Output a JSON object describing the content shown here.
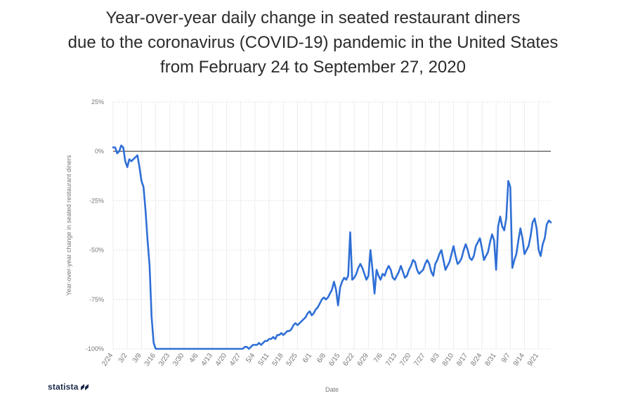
{
  "title_lines": [
    "Year-over-year daily change in seated restaurant diners",
    "due to the coronavirus (COVID-19) pandemic  in the United States",
    "from February 24 to September 27, 2020"
  ],
  "brand": "statista",
  "chart_data": {
    "type": "line",
    "title": "Year-over-year daily change in seated restaurant diners due to the coronavirus (COVID-19) pandemic in the United States from February 24 to September 27, 2020",
    "xlabel": "Date",
    "ylabel": "Year-over-year change in seated restaurant diners",
    "ylim": [
      -100,
      25
    ],
    "yticks": [
      25,
      0,
      -25,
      -50,
      -75,
      -100
    ],
    "ytick_labels": [
      "25%",
      "0%",
      "-25%",
      "-50%",
      "-75%",
      "-100%"
    ],
    "xtick_labels": [
      "2/24",
      "3/2",
      "3/9",
      "3/16",
      "3/23",
      "3/30",
      "4/6",
      "4/13",
      "4/20",
      "4/27",
      "5/4",
      "5/11",
      "5/18",
      "5/25",
      "6/1",
      "6/8",
      "6/15",
      "6/22",
      "6/29",
      "7/6",
      "7/13",
      "7/20",
      "7/27",
      "8/3",
      "8/10",
      "8/17",
      "8/24",
      "8/31",
      "9/7",
      "9/14",
      "9/21"
    ],
    "grid": true,
    "legend": "none",
    "line_color": "#2f6fd6",
    "zero_line_color": "#777777",
    "series": [
      {
        "values": [
          2,
          2,
          -1,
          0,
          3,
          2,
          -5,
          -8,
          -4,
          -5,
          -4,
          -3,
          -2,
          -8,
          -15,
          -18,
          -30,
          -45,
          -58,
          -84,
          -97,
          -100,
          -100,
          -100,
          -100,
          -100,
          -100,
          -100,
          -100,
          -100,
          -100,
          -100,
          -100,
          -100,
          -100,
          -100,
          -100,
          -100,
          -100,
          -100,
          -100,
          -100,
          -100,
          -100,
          -100,
          -100,
          -100,
          -100,
          -100,
          -100,
          -100,
          -100,
          -100,
          -100,
          -100,
          -100,
          -100,
          -100,
          -100,
          -100,
          -100,
          -100,
          -100,
          -100,
          -100,
          -99,
          -99,
          -100,
          -99,
          -98,
          -98,
          -98,
          -97,
          -98,
          -97,
          -96,
          -96,
          -95,
          -95,
          -94,
          -95,
          -93,
          -93,
          -92,
          -93,
          -92,
          -91,
          -91,
          -90,
          -88,
          -87,
          -88,
          -87,
          -86,
          -85,
          -84,
          -82,
          -81,
          -83,
          -82,
          -80,
          -79,
          -77,
          -75,
          -74,
          -75,
          -74,
          -72,
          -70,
          -66,
          -70,
          -78,
          -69,
          -66,
          -64,
          -65,
          -63,
          -41,
          -65,
          -64,
          -62,
          -59,
          -57,
          -59,
          -62,
          -65,
          -63,
          -50,
          -60,
          -72,
          -60,
          -63,
          -65,
          -62,
          -63,
          -60,
          -58,
          -60,
          -64,
          -65,
          -63,
          -61,
          -58,
          -61,
          -64,
          -63,
          -60,
          -58,
          -55,
          -56,
          -60,
          -62,
          -61,
          -60,
          -57,
          -55,
          -57,
          -61,
          -63,
          -57,
          -55,
          -52,
          -50,
          -55,
          -60,
          -58,
          -56,
          -52,
          -48,
          -53,
          -57,
          -56,
          -54,
          -50,
          -47,
          -50,
          -54,
          -55,
          -53,
          -48,
          -46,
          -44,
          -49,
          -55,
          -53,
          -51,
          -46,
          -42,
          -45,
          -60,
          -38,
          -33,
          -38,
          -40,
          -34,
          -15,
          -18,
          -59,
          -55,
          -52,
          -45,
          -39,
          -44,
          -52,
          -50,
          -48,
          -43,
          -36,
          -34,
          -39,
          -50,
          -53,
          -47,
          -44,
          -37,
          -35,
          -36
        ]
      }
    ]
  }
}
